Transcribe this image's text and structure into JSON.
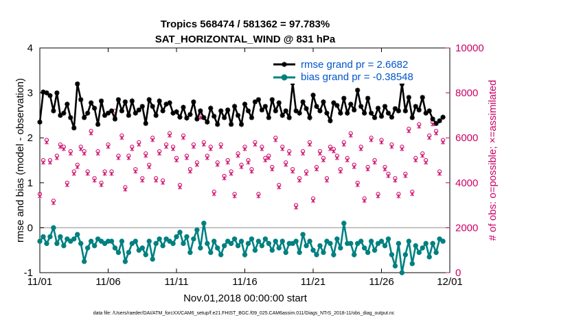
{
  "chart_data": {
    "type": "line",
    "title": "Tropics 568474 / 581362 = 97.783%",
    "subtitle": "SAT_HORIZONTAL_WIND @ 831 hPa",
    "xlabel": "Nov.01,2018 00:00:00 start",
    "ylabel": "rmse and bias (model - observation)",
    "ylabel_right": "# of obs: o=possible; ×=assimilated",
    "xlim": [
      0,
      30
    ],
    "ylim": [
      -1,
      4
    ],
    "ylim_right": [
      0,
      10000
    ],
    "x_tick_labels": [
      "11/01",
      "11/06",
      "11/11",
      "11/16",
      "11/21",
      "11/26",
      "12/01"
    ],
    "x_tick_values": [
      0,
      5,
      10,
      15,
      20,
      25,
      30
    ],
    "y_ticks": [
      -1,
      0,
      1,
      2,
      3,
      4
    ],
    "y_ticks_right": [
      0,
      2000,
      4000,
      6000,
      8000,
      10000
    ],
    "n_points": 119,
    "step_days": 0.25,
    "series": [
      {
        "name": "rmse grand pr = 2.6682",
        "color": "#000000",
        "values": [
          2.35,
          3.02,
          3.0,
          2.94,
          2.6,
          3.0,
          2.5,
          2.55,
          2.75,
          2.45,
          2.22,
          3.2,
          2.85,
          2.45,
          2.55,
          2.78,
          2.66,
          2.3,
          2.82,
          2.5,
          2.55,
          2.6,
          2.42,
          2.85,
          2.6,
          2.8,
          2.5,
          2.82,
          2.55,
          2.62,
          2.7,
          2.32,
          2.85,
          2.7,
          2.5,
          2.82,
          2.6,
          2.75,
          2.78,
          2.55,
          2.58,
          2.46,
          2.68,
          2.44,
          2.52,
          2.8,
          2.42,
          2.6,
          2.45,
          2.35,
          2.66,
          2.48,
          2.3,
          2.6,
          2.45,
          2.62,
          2.3,
          2.7,
          2.5,
          2.3,
          2.75,
          2.6,
          2.45,
          2.8,
          2.85,
          2.62,
          2.7,
          2.45,
          2.85,
          2.6,
          2.78,
          2.5,
          2.6,
          2.45,
          3.22,
          2.6,
          2.55,
          2.8,
          2.65,
          2.45,
          2.95,
          2.7,
          2.6,
          2.8,
          2.55,
          2.38,
          2.78,
          2.72,
          2.55,
          2.88,
          2.55,
          2.75,
          2.62,
          3.06,
          2.7,
          2.55,
          2.88,
          2.55,
          2.45,
          2.66,
          2.48,
          2.7,
          2.55,
          2.46,
          2.65,
          2.6,
          3.2,
          2.6,
          2.9,
          2.45,
          2.7,
          2.62,
          2.9,
          2.55,
          2.6,
          2.42,
          2.32,
          2.38,
          2.46
        ]
      },
      {
        "name": "bias grand pr = -0.38548",
        "color": "#008080",
        "values": [
          -0.3,
          -0.2,
          -0.35,
          -0.2,
          0.0,
          -0.35,
          -0.2,
          -0.4,
          -0.25,
          -0.3,
          -0.25,
          -0.15,
          -0.35,
          -0.75,
          -0.45,
          -0.3,
          -0.4,
          -0.25,
          -0.3,
          -0.35,
          -0.3,
          -0.3,
          -0.45,
          -0.55,
          -0.3,
          -0.75,
          -0.55,
          -0.35,
          -0.3,
          -0.5,
          -0.45,
          -0.6,
          -0.3,
          -0.7,
          -0.35,
          -0.25,
          -0.4,
          -0.25,
          -0.3,
          -0.35,
          -0.2,
          -0.1,
          -0.35,
          -0.2,
          -0.55,
          -0.25,
          -0.05,
          -0.45,
          0.1,
          -0.35,
          -0.55,
          -0.3,
          -0.45,
          -0.6,
          -0.4,
          -0.3,
          -0.35,
          -0.25,
          -0.4,
          -0.3,
          -0.6,
          -0.35,
          -0.25,
          -0.5,
          -0.3,
          -0.4,
          -0.25,
          -0.35,
          -0.5,
          -0.3,
          -0.45,
          -0.3,
          -0.55,
          -0.35,
          -0.35,
          -0.3,
          -0.55,
          -0.15,
          -0.4,
          -0.3,
          -0.5,
          -0.6,
          -0.4,
          -0.55,
          -0.3,
          -0.35,
          -0.6,
          -0.25,
          -0.45,
          0.1,
          -0.35,
          -0.35,
          -0.6,
          -0.35,
          -0.3,
          -0.45,
          -0.55,
          -0.3,
          -0.5,
          -0.35,
          -0.3,
          -0.4,
          -0.25,
          -0.6,
          -0.85,
          -0.35,
          -1.0,
          -0.6,
          -0.3,
          -0.8,
          -0.4,
          -0.55,
          -0.45,
          -0.35,
          -0.65,
          -0.35,
          -0.55,
          -0.25,
          -0.3
        ]
      },
      {
        "name": "possible",
        "color": "#cc0066",
        "marker": "o",
        "axis": "right",
        "values": [
          3500,
          5000,
          5900,
          5000,
          3200,
          5200,
          5700,
          5600,
          4000,
          5400,
          4500,
          4800,
          5600,
          5400,
          4500,
          6300,
          4200,
          5400,
          4000,
          4500,
          5700,
          4500,
          7200,
          5200,
          6100,
          3800,
          5200,
          5600,
          4600,
          5800,
          4200,
          5300,
          4800,
          6000,
          4200,
          5400,
          4100,
          5700,
          6200,
          5600,
          5100,
          3900,
          6100,
          5200,
          4600,
          5700,
          4900,
          7100,
          5800,
          5200,
          5600,
          3600,
          4900,
          5700,
          4300,
          5000,
          4500,
          3500,
          5300,
          4800,
          5600,
          5000,
          4600,
          5800,
          3500,
          5600,
          5100,
          5200,
          4700,
          6000,
          3900,
          5600,
          4900,
          5400,
          4600,
          3000,
          4200,
          5400,
          4500,
          5800,
          3300,
          4700,
          5400,
          5100,
          4200,
          5600,
          5500,
          5200,
          4600,
          5800,
          5100,
          6200,
          4800,
          4000,
          5600,
          3300,
          4700,
          6000,
          5000,
          3500,
          5900,
          4700,
          4400,
          5700,
          4200,
          3500,
          5600,
          4400,
          6400,
          3600,
          5100,
          6600,
          5300,
          5000,
          6100,
          6700,
          6300,
          4500,
          5900
        ]
      },
      {
        "name": "assimilated",
        "color": "#cc0066",
        "marker": "x",
        "axis": "right",
        "values": [
          3400,
          4900,
          5800,
          4900,
          3100,
          5100,
          5600,
          5500,
          3900,
          5300,
          4400,
          4700,
          5500,
          5300,
          4400,
          6200,
          4100,
          5300,
          3900,
          4400,
          5600,
          4400,
          7000,
          5100,
          6000,
          3700,
          5100,
          5500,
          4500,
          5700,
          4100,
          5200,
          4700,
          5900,
          4100,
          5300,
          4000,
          5600,
          6100,
          5500,
          5000,
          3800,
          6000,
          5100,
          4500,
          5600,
          4800,
          6900,
          5700,
          5100,
          5500,
          3500,
          4800,
          5600,
          4200,
          4900,
          4400,
          3400,
          5200,
          4700,
          5500,
          4900,
          4500,
          5700,
          3400,
          5500,
          5000,
          5100,
          4600,
          5900,
          3800,
          5500,
          4800,
          5300,
          4500,
          2900,
          4100,
          5300,
          4400,
          5700,
          3200,
          4600,
          5300,
          5000,
          4100,
          5500,
          5400,
          5100,
          4500,
          5700,
          5000,
          6100,
          4700,
          3900,
          5500,
          3200,
          4600,
          5900,
          4900,
          3400,
          5800,
          4600,
          4300,
          5600,
          4100,
          3400,
          5500,
          4300,
          6300,
          3500,
          5000,
          6500,
          5200,
          4900,
          6000,
          6600,
          6200,
          4400,
          5800
        ]
      }
    ],
    "legend": {
      "entries": [
        "rmse grand pr = 2.6682",
        "bias grand pr = -0.38548"
      ],
      "location": "top-right"
    },
    "footnote": "data file: /Users/raeder/DAI/ATM_forcXX/CAM6_setup/f.e21.FHIST_BGC.f09_025.CAM6assim.011/Diags_NTrS_2018-11/obs_diag_output.nc"
  }
}
